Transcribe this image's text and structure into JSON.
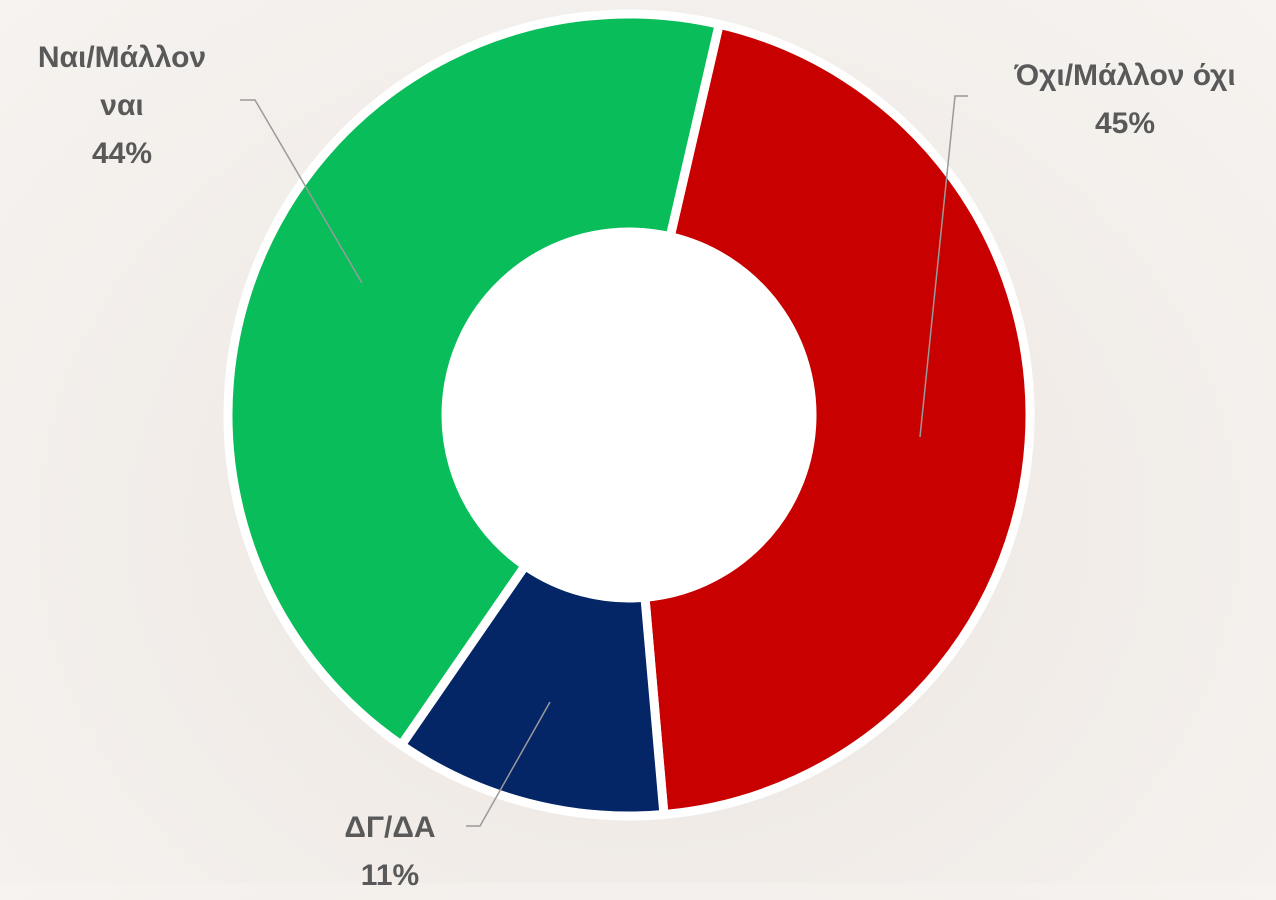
{
  "chart_data": {
    "type": "donut",
    "categories": [
      "Όχι/Μάλλον όχι",
      "ΔΓ/ΔΑ",
      "Ναι/Μάλλον ναι"
    ],
    "values": [
      45,
      11,
      44
    ],
    "value_labels": [
      "45%",
      "11%",
      "44%"
    ],
    "colors": [
      "#c80000",
      "#042566",
      "#08bd5a"
    ]
  }
}
